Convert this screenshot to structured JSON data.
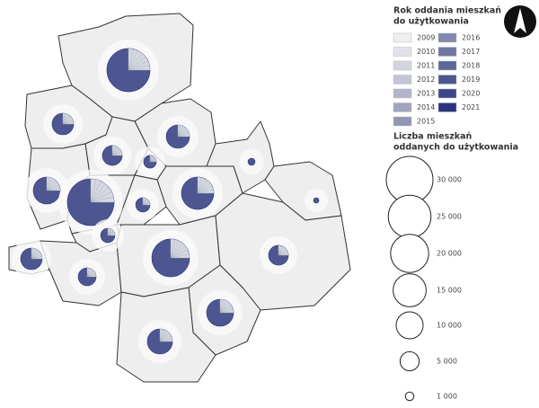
{
  "legend_years": {
    "title_lines": [
      "Rok oddania mieszkań",
      "do użytkowania"
    ],
    "items": [
      {
        "label": "2009",
        "color": "#efeff1"
      },
      {
        "label": "2010",
        "color": "#e2e3e8"
      },
      {
        "label": "2011",
        "color": "#d3d5de"
      },
      {
        "label": "2012",
        "color": "#c3c6d4"
      },
      {
        "label": "2013",
        "color": "#b2b5c9"
      },
      {
        "label": "2014",
        "color": "#a1a5bf"
      },
      {
        "label": "2015",
        "color": "#9196b6"
      },
      {
        "label": "2016",
        "color": "#8187ad"
      },
      {
        "label": "2017",
        "color": "#7077a3"
      },
      {
        "label": "2018",
        "color": "#5f6799"
      },
      {
        "label": "2019",
        "color": "#4d5690"
      },
      {
        "label": "2020",
        "color": "#3c4587"
      },
      {
        "label": "2021",
        "color": "#2a347e"
      }
    ]
  },
  "legend_size": {
    "title_lines": [
      "Liczba mieszkań",
      "oddanych do użytkowania"
    ],
    "items": [
      {
        "value": 30000,
        "label": "30 000"
      },
      {
        "value": 25000,
        "label": "25 000"
      },
      {
        "value": 20000,
        "label": "20 000"
      },
      {
        "value": 15000,
        "label": "15 000"
      },
      {
        "value": 10000,
        "label": "10 000"
      },
      {
        "value": 5000,
        "label": "5 000"
      },
      {
        "value": 1000,
        "label": "1 000"
      }
    ]
  },
  "districts": [
    {
      "total": 25600
    },
    {
      "total": 6400
    },
    {
      "total": 7500
    },
    {
      "total": 5400
    },
    {
      "total": 2200
    },
    {
      "total": 10000
    },
    {
      "total": 30000
    },
    {
      "total": 2800
    },
    {
      "total": 14400
    },
    {
      "total": 2800
    },
    {
      "total": 700
    },
    {
      "total": 400
    },
    {
      "total": 6400
    },
    {
      "total": 4400
    },
    {
      "total": 19600
    },
    {
      "total": 5400
    },
    {
      "total": 10000
    },
    {
      "total": 8700
    }
  ]
}
